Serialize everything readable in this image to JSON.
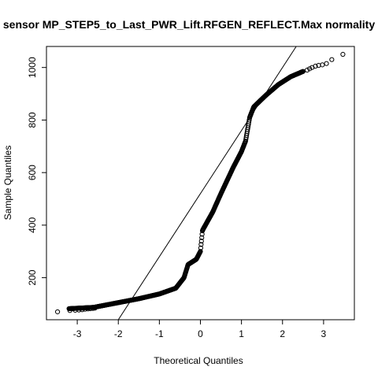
{
  "chart_data": {
    "type": "scatter",
    "subtype": "normal-qq-plot",
    "title": "sensor MP_STEP5_to_Last_PWR_Lift.RFGEN_REFLECT.Max normality",
    "xlabel": "Theoretical Quantiles",
    "ylabel": "Sample Quantiles",
    "xlim": [
      -3.75,
      3.75
    ],
    "ylim": [
      40,
      1080
    ],
    "x_ticks": [
      -3,
      -2,
      -1,
      0,
      1,
      2,
      3
    ],
    "y_ticks": [
      200,
      400,
      600,
      800,
      1000
    ],
    "grid": false,
    "marker": "open-circle",
    "reference_line": {
      "slope": 240,
      "intercept": 520
    },
    "curve_knots": [
      [
        -3.2,
        82
      ],
      [
        -2.6,
        87
      ],
      [
        -2.0,
        105
      ],
      [
        -1.5,
        120
      ],
      [
        -1.0,
        138
      ],
      [
        -0.6,
        160
      ],
      [
        -0.4,
        200
      ],
      [
        -0.3,
        250
      ],
      [
        -0.1,
        270
      ],
      [
        0.0,
        300
      ],
      [
        0.05,
        380
      ],
      [
        0.3,
        450
      ],
      [
        0.5,
        520
      ],
      [
        0.8,
        620
      ],
      [
        1.0,
        680
      ],
      [
        1.1,
        720
      ],
      [
        1.2,
        810
      ],
      [
        1.3,
        850
      ],
      [
        1.6,
        895
      ],
      [
        1.9,
        935
      ],
      [
        2.2,
        965
      ],
      [
        2.5,
        985
      ]
    ],
    "tail_points": [
      [
        -3.48,
        70
      ],
      [
        -3.18,
        75
      ],
      [
        -3.05,
        76
      ],
      [
        -2.96,
        77
      ],
      [
        -2.88,
        78
      ],
      [
        -2.81,
        80
      ],
      [
        -2.74,
        81
      ],
      [
        -2.68,
        82
      ],
      [
        -2.62,
        83
      ],
      [
        -2.57,
        84
      ],
      [
        2.6,
        990
      ],
      [
        2.66,
        995
      ],
      [
        2.72,
        1000
      ],
      [
        2.8,
        1005
      ],
      [
        2.88,
        1008
      ],
      [
        2.97,
        1010
      ],
      [
        3.07,
        1015
      ],
      [
        3.2,
        1030
      ],
      [
        3.47,
        1050
      ]
    ]
  }
}
